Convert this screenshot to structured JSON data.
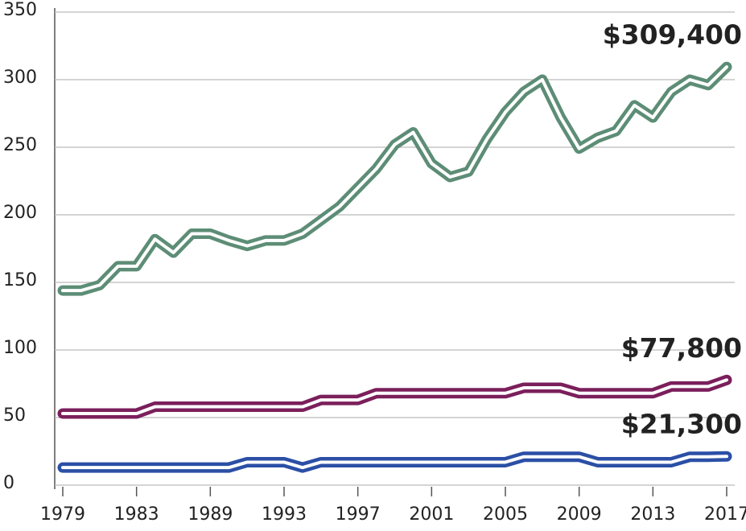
{
  "chart_data": {
    "type": "line",
    "categories": [
      "1979",
      null,
      null,
      null,
      "1983",
      null,
      null,
      null,
      "1989",
      null,
      null,
      null,
      "1993",
      null,
      null,
      null,
      "1997",
      null,
      null,
      null,
      "2001",
      null,
      null,
      null,
      "2005",
      null,
      null,
      null,
      "2009",
      null,
      null,
      null,
      "2013",
      null,
      null,
      null,
      "2017"
    ],
    "series": [
      {
        "color": "#5d8d76",
        "end_label": "$309,400",
        "values": [
          144,
          144,
          148,
          162,
          162,
          182,
          172,
          186,
          186,
          181,
          177,
          181,
          181,
          186,
          196,
          206,
          220,
          234,
          252,
          261,
          238,
          228,
          232,
          256,
          276,
          291,
          300,
          272,
          249,
          257,
          262,
          281,
          272,
          291,
          300,
          296,
          309.4
        ]
      },
      {
        "color": "#7b1f5b",
        "end_label": "$77,800",
        "values": [
          53,
          53,
          53,
          53,
          53,
          58,
          58,
          58,
          58,
          58,
          58,
          58,
          58,
          58,
          63,
          63,
          63,
          68,
          68,
          68,
          68,
          68,
          68,
          68,
          68,
          72,
          72,
          72,
          68,
          68,
          68,
          68,
          68,
          73,
          73,
          73,
          77.8
        ]
      },
      {
        "color": "#2b4fa6",
        "end_label": "$21,300",
        "values": [
          13,
          13,
          13,
          13,
          13,
          13,
          13,
          13,
          13,
          13,
          17,
          17,
          17,
          13,
          17,
          17,
          17,
          17,
          17,
          17,
          17,
          17,
          17,
          17,
          17,
          21,
          21,
          21,
          21,
          17,
          17,
          17,
          17,
          17,
          21,
          21,
          21.3
        ]
      }
    ],
    "ylim": [
      0,
      350
    ],
    "yticks": [
      0,
      50,
      100,
      150,
      200,
      250,
      300,
      350
    ],
    "grid": true
  }
}
